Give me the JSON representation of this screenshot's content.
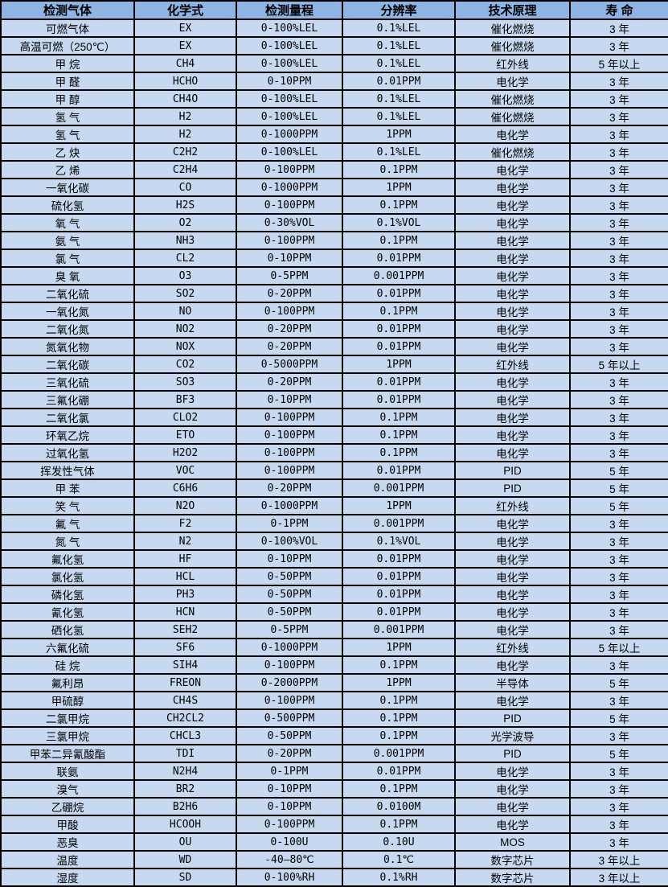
{
  "table": {
    "headers": [
      "检测气体",
      "化学式",
      "检测量程",
      "分辨率",
      "技术原理",
      "寿  命"
    ],
    "rows": [
      [
        "可燃气体",
        "EX",
        "0-100%LEL",
        "0.1%LEL",
        "催化燃烧",
        "3 年"
      ],
      [
        "高温可燃（250℃）",
        "EX",
        "0-100%LEL",
        "0.1%LEL",
        "催化燃烧",
        "3 年"
      ],
      [
        "甲  烷",
        "CH4",
        "0-100%LEL",
        "0.1%LEL",
        "红外线",
        "5 年以上"
      ],
      [
        "甲  醛",
        "HCHO",
        "0-10PPM",
        "0.01PPM",
        "电化学",
        "3 年"
      ],
      [
        "甲  醇",
        "CH4O",
        "0-100%LEL",
        "0.1%LEL",
        "催化燃烧",
        "3 年"
      ],
      [
        "氢  气",
        "H2",
        "0-100%LEL",
        "0.1%LEL",
        "催化燃烧",
        "3 年"
      ],
      [
        "氢  气",
        "H2",
        "0-1000PPM",
        "1PPM",
        "电化学",
        "3 年"
      ],
      [
        "乙  炔",
        "C2H2",
        "0-100%LEL",
        "0.1%LEL",
        "催化燃烧",
        "3 年"
      ],
      [
        "乙  烯",
        "C2H4",
        "0-100PPM",
        "0.1PPM",
        "电化学",
        "3 年"
      ],
      [
        "一氧化碳",
        "CO",
        "0-1000PPM",
        "1PPM",
        "电化学",
        "3 年"
      ],
      [
        "硫化氢",
        "H2S",
        "0-100PPM",
        "0.1PPM",
        "电化学",
        "3 年"
      ],
      [
        "氧  气",
        "O2",
        "0-30%VOL",
        "0.1%VOL",
        "电化学",
        "3 年"
      ],
      [
        "氨  气",
        "NH3",
        "0-100PPM",
        "0.1PPM",
        "电化学",
        "3 年"
      ],
      [
        "氯  气",
        "CL2",
        "0-10PPM",
        "0.01PPM",
        "电化学",
        "3 年"
      ],
      [
        "臭  氧",
        "O3",
        "0-5PPM",
        "0.001PPM",
        "电化学",
        "3 年"
      ],
      [
        "二氧化硫",
        "SO2",
        "0-20PPM",
        "0.01PPM",
        "电化学",
        "3 年"
      ],
      [
        "一氧化氮",
        "NO",
        "0-100PPM",
        "0.1PPM",
        "电化学",
        "3 年"
      ],
      [
        "二氧化氮",
        "NO2",
        "0-20PPM",
        "0.01PPM",
        "电化学",
        "3 年"
      ],
      [
        "氮氧化物",
        "NOX",
        "0-20PPM",
        "0.01PPM",
        "电化学",
        "3 年"
      ],
      [
        "二氧化碳",
        "CO2",
        "0-5000PPM",
        "1PPM",
        "红外线",
        "5 年以上"
      ],
      [
        "三氧化硫",
        "SO3",
        "0-20PPM",
        "0.01PPM",
        "电化学",
        "3 年"
      ],
      [
        "三氟化硼",
        "BF3",
        "0-10PPM",
        "0.01PPM",
        "电化学",
        "3 年"
      ],
      [
        "二氧化氯",
        "CLO2",
        "0-100PPM",
        "0.1PPM",
        "电化学",
        "3 年"
      ],
      [
        "环氧乙烷",
        "ETO",
        "0-100PPM",
        "0.1PPM",
        "电化学",
        "3 年"
      ],
      [
        "过氧化氢",
        "H2O2",
        "0-100PPM",
        "0.1PPM",
        "电化学",
        "3 年"
      ],
      [
        "挥发性气体",
        "VOC",
        "0-100PPM",
        "0.01PPM",
        "PID",
        "5 年"
      ],
      [
        "甲  苯",
        "C6H6",
        "0-20PPM",
        "0.001PPM",
        "PID",
        "5 年"
      ],
      [
        "笑  气",
        "N2O",
        "0-1000PPM",
        "1PPM",
        "红外线",
        "5 年"
      ],
      [
        "氟  气",
        "F2",
        "0-1PPM",
        "0.001PPM",
        "电化学",
        "3 年"
      ],
      [
        "氮  气",
        "N2",
        "0-100%VOL",
        "0.1%VOL",
        "电化学",
        "3 年"
      ],
      [
        "氟化氢",
        "HF",
        "0-10PPM",
        "0.01PPM",
        "电化学",
        "3 年"
      ],
      [
        "氯化氢",
        "HCL",
        "0-50PPM",
        "0.01PPM",
        "电化学",
        "3 年"
      ],
      [
        "磷化氢",
        "PH3",
        "0-50PPM",
        "0.01PPM",
        "电化学",
        "3 年"
      ],
      [
        "氰化氢",
        "HCN",
        "0-50PPM",
        "0.01PPM",
        "电化学",
        "3 年"
      ],
      [
        "硒化氢",
        "SEH2",
        "0-5PPM",
        "0.001PPM",
        "电化学",
        "3 年"
      ],
      [
        "六氟化硫",
        "SF6",
        "0-1000PPM",
        "1PPM",
        "红外线",
        "5 年以上"
      ],
      [
        "硅  烷",
        "SIH4",
        "0-100PPM",
        "0.1PPM",
        "电化学",
        "3 年"
      ],
      [
        "氟利昂",
        "FREON",
        "0-2000PPM",
        "1PPM",
        "半导体",
        "5 年"
      ],
      [
        "甲硫醇",
        "CH4S",
        "0-100PPM",
        "0.1PPM",
        "电化学",
        "3 年"
      ],
      [
        "二氯甲烷",
        "CH2CL2",
        "0-500PPM",
        "0.1PPM",
        "PID",
        "5 年"
      ],
      [
        "三氯甲烷",
        "CHCL3",
        "0-50PPM",
        "0.1PPM",
        "光学波导",
        "3 年"
      ],
      [
        "甲苯二异氰酸酯",
        "TDI",
        "0-20PPM",
        "0.001PPM",
        "PID",
        "5 年"
      ],
      [
        "联氨",
        "N2H4",
        "0-1PPM",
        "0.01PPM",
        "电化学",
        "3 年"
      ],
      [
        "溴气",
        "BR2",
        "0-10PPM",
        "0.1PPM",
        "电化学",
        "3 年"
      ],
      [
        "乙硼烷",
        "B2H6",
        "0-10PPM",
        "0.0100M",
        "电化学",
        "3 年"
      ],
      [
        "甲酸",
        "HCOOH",
        "0-100PPM",
        "0.1PPM",
        "电化学",
        "3 年"
      ],
      [
        "恶臭",
        "OU",
        "0-100U",
        "0.10U",
        "MOS",
        "3 年"
      ],
      [
        "温度",
        "WD",
        "-40—80℃",
        "0.1℃",
        "数字芯片",
        "3 年以上"
      ],
      [
        "湿度",
        "SD",
        "0-100%RH",
        "0.1%RH",
        "数字芯片",
        "3 年以上"
      ]
    ],
    "colors": {
      "header_bg": "#8DB4E2",
      "row_bg": "#C6D9F1",
      "border": "#000000",
      "text": "#000000"
    }
  }
}
